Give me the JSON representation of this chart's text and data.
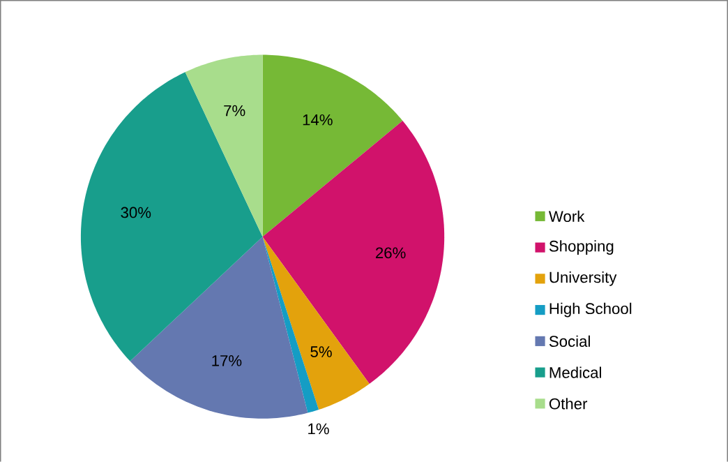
{
  "chart_data": {
    "type": "pie",
    "categories": [
      "Work",
      "Shopping",
      "University",
      "High School",
      "Social",
      "Medical",
      "Other"
    ],
    "values": [
      14,
      26,
      5,
      1,
      17,
      30,
      7
    ],
    "value_labels": [
      "14%",
      "26%",
      "5%",
      "1%",
      "17%",
      "30%",
      "7%"
    ],
    "colors": [
      "#76b936",
      "#d1126b",
      "#e3a20c",
      "#159dc4",
      "#6478b0",
      "#189e8c",
      "#a8dd8c"
    ],
    "legend": "right"
  }
}
